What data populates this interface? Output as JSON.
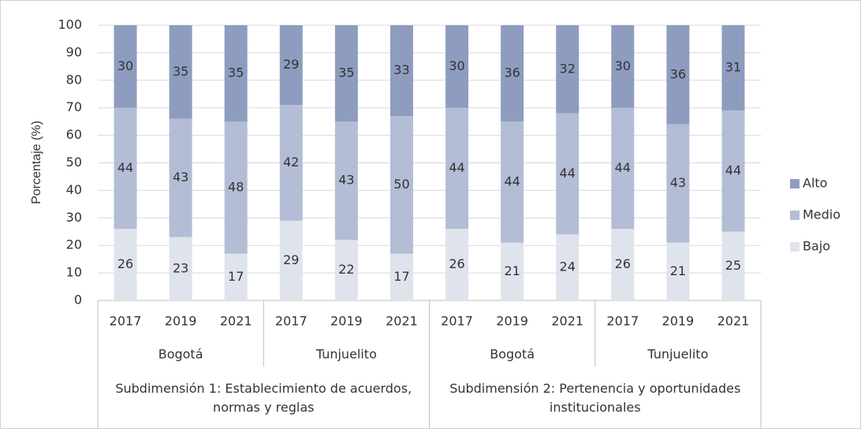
{
  "chart_data": {
    "type": "stacked_bar",
    "y_label": "Porcentaje (%)",
    "categories": [
      "2017",
      "2019",
      "2021",
      "2017",
      "2019",
      "2021",
      "2017",
      "2019",
      "2021",
      "2017",
      "2019",
      "2021"
    ],
    "category_groups": [
      "Bogotá",
      "Tunjuelito",
      "Bogotá",
      "Tunjuelito"
    ],
    "category_supergroups": [
      "Subdimensión 1: Establecimiento de acuerdos, normas y reglas",
      "Subdimensión 2: Pertenencia y oportunidades institucionales"
    ],
    "series": [
      {
        "name": "Bajo",
        "color": "#dfe3ec",
        "values": [
          26,
          23,
          17,
          29,
          22,
          17,
          26,
          21,
          24,
          26,
          21,
          25
        ]
      },
      {
        "name": "Medio",
        "color": "#b4bdd6",
        "values": [
          44,
          43,
          48,
          42,
          43,
          50,
          44,
          44,
          44,
          44,
          43,
          44
        ]
      },
      {
        "name": "Alto",
        "color": "#8e9cc0",
        "values": [
          30,
          35,
          35,
          29,
          35,
          33,
          30,
          36,
          32,
          30,
          36,
          31
        ]
      }
    ],
    "ylim": [
      0,
      100
    ],
    "yticks": [
      0,
      10,
      20,
      30,
      40,
      50,
      60,
      70,
      80,
      90,
      100
    ],
    "grid": true,
    "legend": "right"
  }
}
